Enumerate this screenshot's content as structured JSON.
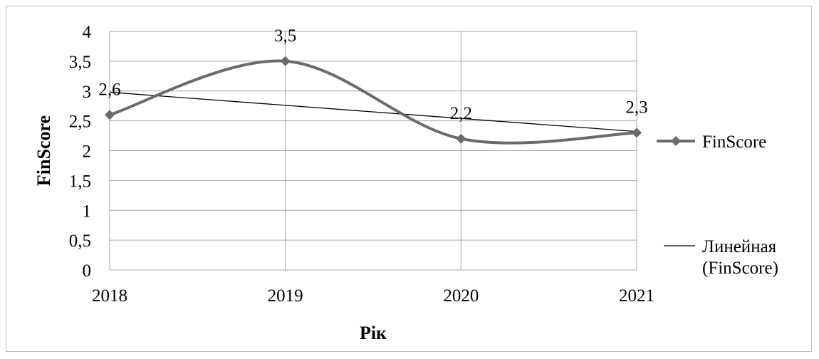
{
  "chart_data": {
    "type": "line",
    "categories": [
      "2018",
      "2019",
      "2020",
      "2021"
    ],
    "series": [
      {
        "name": "FinScore",
        "values": [
          2.6,
          3.5,
          2.2,
          2.3
        ],
        "color": "#6b6b6b",
        "smooth": true,
        "marker": "diamond"
      }
    ],
    "trendline": {
      "name_line1": "Линейная",
      "name_line2": "(FinScore)",
      "kind": "linear",
      "color": "#000000"
    },
    "data_labels": [
      "2,6",
      "3,5",
      "2,2",
      "2,3"
    ],
    "y_ticks": [
      "0",
      "0,5",
      "1",
      "1,5",
      "2",
      "2,5",
      "3",
      "3,5",
      "4"
    ],
    "ylim": [
      0,
      4
    ],
    "xlabel": "Рік",
    "ylabel": "FinScore",
    "grid": true,
    "legend_position": "right"
  }
}
